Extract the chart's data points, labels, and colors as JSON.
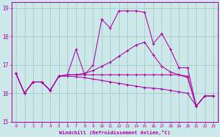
{
  "xlabel": "Windchill (Refroidissement éolien,°C)",
  "background_color": "#cce8e8",
  "grid_color": "#aacccc",
  "line_color": "#aa00aa",
  "xlim": [
    -0.5,
    23.5
  ],
  "ylim": [
    15,
    19.2
  ],
  "yticks": [
    15,
    16,
    17,
    18,
    19
  ],
  "xticks": [
    0,
    1,
    2,
    3,
    4,
    5,
    6,
    7,
    8,
    9,
    10,
    11,
    12,
    13,
    14,
    15,
    16,
    17,
    18,
    19,
    20,
    21,
    22,
    23
  ],
  "lines": [
    {
      "x": [
        0,
        1,
        2,
        3,
        4,
        5,
        6,
        7,
        8,
        9,
        10,
        11,
        12,
        13,
        14,
        15,
        16,
        17,
        18,
        19,
        20,
        21,
        22,
        23
      ],
      "y": [
        16.7,
        16.0,
        16.4,
        16.4,
        16.1,
        16.6,
        16.65,
        17.55,
        16.65,
        17.0,
        18.6,
        18.3,
        18.9,
        18.9,
        18.9,
        18.85,
        17.75,
        18.1,
        17.55,
        16.9,
        16.9,
        15.55,
        15.9,
        15.9
      ]
    },
    {
      "x": [
        0,
        1,
        2,
        3,
        4,
        5,
        6,
        7,
        8,
        9,
        10,
        11,
        12,
        13,
        14,
        15,
        16,
        17,
        18,
        19,
        20,
        21,
        22,
        23
      ],
      "y": [
        16.7,
        16.0,
        16.4,
        16.4,
        16.1,
        16.6,
        16.65,
        16.65,
        16.7,
        16.8,
        16.95,
        17.1,
        17.3,
        17.5,
        17.7,
        17.8,
        17.35,
        16.95,
        16.75,
        16.65,
        16.55,
        15.55,
        15.9,
        15.9
      ]
    },
    {
      "x": [
        0,
        1,
        2,
        3,
        4,
        5,
        6,
        7,
        8,
        9,
        10,
        11,
        12,
        13,
        14,
        15,
        16,
        17,
        18,
        19,
        20,
        21,
        22,
        23
      ],
      "y": [
        16.7,
        16.0,
        16.4,
        16.4,
        16.1,
        16.6,
        16.65,
        16.65,
        16.65,
        16.65,
        16.65,
        16.65,
        16.65,
        16.65,
        16.65,
        16.65,
        16.65,
        16.65,
        16.65,
        16.65,
        16.6,
        15.55,
        15.9,
        15.9
      ]
    },
    {
      "x": [
        0,
        1,
        2,
        3,
        4,
        5,
        6,
        7,
        8,
        9,
        10,
        11,
        12,
        13,
        14,
        15,
        16,
        17,
        18,
        19,
        20,
        21,
        22,
        23
      ],
      "y": [
        16.7,
        16.0,
        16.4,
        16.4,
        16.1,
        16.6,
        16.6,
        16.58,
        16.55,
        16.5,
        16.45,
        16.4,
        16.35,
        16.3,
        16.25,
        16.2,
        16.18,
        16.15,
        16.1,
        16.05,
        16.0,
        15.55,
        15.9,
        15.9
      ]
    }
  ]
}
